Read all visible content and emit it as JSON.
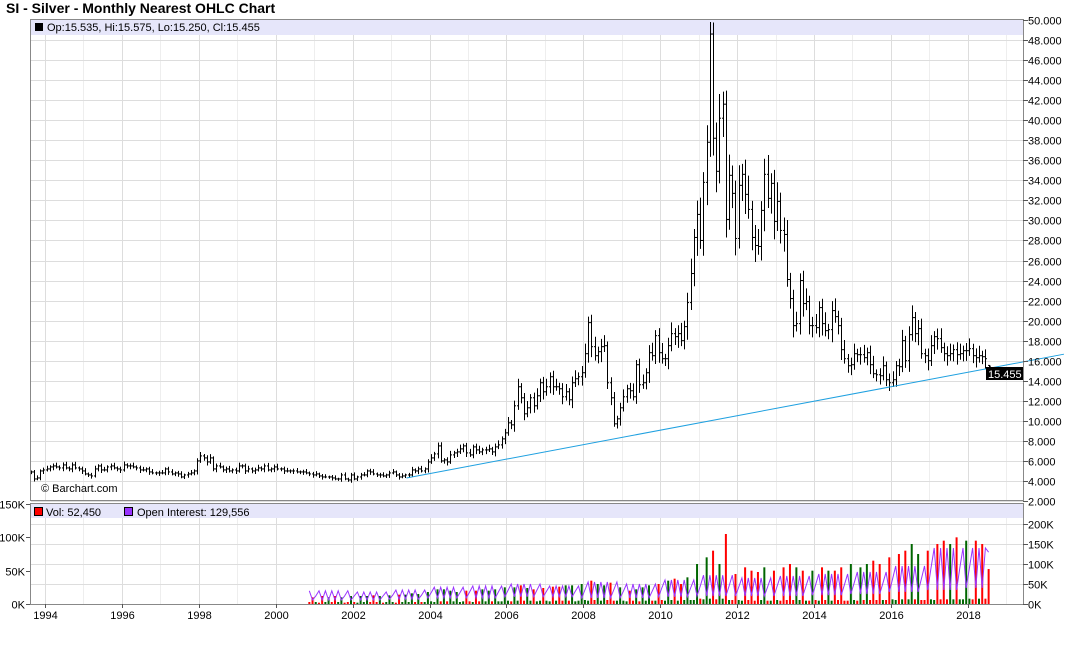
{
  "title": "SI - Silver - Monthly Nearest OHLC Chart",
  "watermark": "© Barchart.com",
  "price_legend": "Op:15.535, Hi:15.575, Lo:15.250, Cl:15.455",
  "last_price_tag": "15.455",
  "volume_legend": {
    "vol": "Vol: 52,450",
    "oi": "Open Interest: 129,556"
  },
  "colors": {
    "bar": "#000000",
    "trendline": "#1ea0e0",
    "vol_up": "#006600",
    "vol_down": "#ff0000",
    "oi": "#9933ff",
    "legend_bg": "#e6e6fa"
  },
  "chart_data": [
    {
      "type": "ohlc",
      "title": "SI - Silver - Monthly Nearest OHLC Chart",
      "start_month": "1993-08",
      "ylim": [
        2,
        50
      ],
      "yticks": [
        "2.000",
        "4.000",
        "6.000",
        "8.000",
        "10.000",
        "12.000",
        "14.000",
        "16.000",
        "18.000",
        "20.000",
        "22.000",
        "24.000",
        "26.000",
        "28.000",
        "30.000",
        "32.000",
        "34.000",
        "36.000",
        "38.000",
        "40.000",
        "42.000",
        "44.000",
        "46.000",
        "48.000",
        "50.000"
      ],
      "xticks": [
        "1994",
        "1996",
        "1998",
        "2000",
        "2002",
        "2004",
        "2006",
        "2008",
        "2010",
        "2012",
        "2014",
        "2016",
        "2018"
      ],
      "monthly_close": [
        4.9,
        4.2,
        4.3,
        5.0,
        5.1,
        5.2,
        5.4,
        5.5,
        5.4,
        5.3,
        5.6,
        5.3,
        5.2,
        5.6,
        5.3,
        5.2,
        5.0,
        4.7,
        4.6,
        4.5,
        5.2,
        5.5,
        5.1,
        5.1,
        5.4,
        5.5,
        5.3,
        5.2,
        5.1,
        5.6,
        5.5,
        5.5,
        5.4,
        5.3,
        5.1,
        5.1,
        5.2,
        4.9,
        4.8,
        4.8,
        4.8,
        4.8,
        5.2,
        4.9,
        4.7,
        4.8,
        4.7,
        4.4,
        4.6,
        4.7,
        4.8,
        5.0,
        6.0,
        6.5,
        6.3,
        5.9,
        6.3,
        5.2,
        5.5,
        5.4,
        5.1,
        5.2,
        5.0,
        5.1,
        5.0,
        5.5,
        5.5,
        5.0,
        5.2,
        5.0,
        5.1,
        5.3,
        5.2,
        5.5,
        5.1,
        5.2,
        5.4,
        5.2,
        5.2,
        5.0,
        5.0,
        5.0,
        5.0,
        4.9,
        4.9,
        4.9,
        4.8,
        4.7,
        4.6,
        4.7,
        4.5,
        4.4,
        4.4,
        4.4,
        4.3,
        4.2,
        4.2,
        4.6,
        4.2,
        4.1,
        4.6,
        4.2,
        4.4,
        4.6,
        4.6,
        5.0,
        4.9,
        4.7,
        4.6,
        4.6,
        4.5,
        4.6,
        4.8,
        4.9,
        4.6,
        4.4,
        4.5,
        4.6,
        4.6,
        5.1,
        5.0,
        5.2,
        5.0,
        5.2,
        5.9,
        6.3,
        6.7,
        7.5,
        6.0,
        6.1,
        5.9,
        6.6,
        6.8,
        6.9,
        7.2,
        7.5,
        6.8,
        6.6,
        7.4,
        7.1,
        6.9,
        7.1,
        7.1,
        7.2,
        6.9,
        7.4,
        7.6,
        8.2,
        8.8,
        9.8,
        9.6,
        11.5,
        13.4,
        12.3,
        10.7,
        11.3,
        12.3,
        11.5,
        12.5,
        13.8,
        12.9,
        13.4,
        14.4,
        13.4,
        13.4,
        13.2,
        12.4,
        12.9,
        12.1,
        13.8,
        14.2,
        14.4,
        14.8,
        16.7,
        19.8,
        17.4,
        16.5,
        16.9,
        17.4,
        17.5,
        13.8,
        12.3,
        9.7,
        10.2,
        11.3,
        12.4,
        13.2,
        13.0,
        12.4,
        15.6,
        13.6,
        13.8,
        14.8,
        16.8,
        16.5,
        18.5,
        16.8,
        16.2,
        16.2,
        17.5,
        18.7,
        18.4,
        18.7,
        18.0,
        19.4,
        21.8,
        24.7,
        28.3,
        30.6,
        28.0,
        33.8,
        37.8,
        48.6,
        38.2,
        34.9,
        40.2,
        41.6,
        30.1,
        34.5,
        32.7,
        28.2,
        33.5,
        34.6,
        32.6,
        31.1,
        28.3,
        27.5,
        27.4,
        31.0,
        34.6,
        32.2,
        33.7,
        29.9,
        31.9,
        29.0,
        28.6,
        24.1,
        22.2,
        19.5,
        19.7,
        24.0,
        21.7,
        21.9,
        19.5,
        19.5,
        19.3,
        21.3,
        19.7,
        19.0,
        19.1,
        21.0,
        20.4,
        19.5,
        17.1,
        16.2,
        15.5,
        15.6,
        16.7,
        16.6,
        16.6,
        16.3,
        16.8,
        15.6,
        14.7,
        14.6,
        14.5,
        15.5,
        14.1,
        13.8,
        14.1,
        15.5,
        15.4,
        18.0,
        16.0,
        18.6,
        20.3,
        18.7,
        19.2,
        16.7,
        16.5,
        16.0,
        17.5,
        18.4,
        18.2,
        17.3,
        16.7,
        16.5,
        16.7,
        17.1,
        16.6,
        16.7,
        17.0,
        17.0,
        17.2,
        16.5,
        16.3,
        16.5,
        16.4,
        16.2,
        15.455
      ],
      "last_bar": {
        "open": 15.535,
        "high": 15.575,
        "low": 15.25,
        "close": 15.455
      },
      "max_high": 49.8,
      "trendline": {
        "from": [
          2003.4,
          4.3
        ],
        "to": [
          2020.5,
          16.65
        ]
      }
    },
    {
      "type": "bar+line",
      "start_month": "2000-11",
      "volume_ylim_k": [
        0,
        150
      ],
      "volume_ticks": [
        "0K",
        "50K",
        "100K",
        "150K"
      ],
      "oi_ylim_k": [
        0,
        200
      ],
      "oi_ticks": [
        "0K",
        "50K",
        "100K",
        "150K",
        "200K"
      ],
      "volume_k": [
        3,
        10,
        3,
        2,
        12,
        3,
        10,
        3,
        12,
        3,
        10,
        2,
        3,
        12,
        3,
        2,
        12,
        3,
        12,
        3,
        13,
        3,
        12,
        2,
        3,
        13,
        3,
        2,
        14,
        3,
        14,
        3,
        16,
        3,
        15,
        3,
        3,
        18,
        4,
        3,
        22,
        4,
        22,
        4,
        20,
        4,
        18,
        3,
        4,
        20,
        4,
        3,
        20,
        4,
        22,
        4,
        20,
        4,
        22,
        4,
        4,
        25,
        5,
        4,
        25,
        5,
        28,
        5,
        24,
        5,
        22,
        4,
        5,
        24,
        5,
        4,
        26,
        5,
        26,
        5,
        28,
        5,
        28,
        4,
        5,
        30,
        6,
        5,
        35,
        6,
        30,
        5,
        28,
        6,
        32,
        5,
        5,
        25,
        5,
        4,
        20,
        5,
        22,
        4,
        25,
        5,
        28,
        5,
        5,
        30,
        6,
        5,
        35,
        6,
        38,
        5,
        30,
        6,
        40,
        6,
        6,
        60,
        8,
        7,
        70,
        8,
        80,
        7,
        60,
        8,
        105,
        6,
        6,
        45,
        6,
        5,
        55,
        6,
        50,
        5,
        48,
        6,
        55,
        5,
        5,
        50,
        6,
        5,
        55,
        6,
        60,
        6,
        55,
        6,
        50,
        5,
        5,
        50,
        6,
        5,
        55,
        6,
        50,
        5,
        50,
        6,
        55,
        5,
        5,
        60,
        6,
        5,
        55,
        6,
        60,
        6,
        65,
        6,
        60,
        6,
        6,
        70,
        7,
        6,
        75,
        7,
        80,
        7,
        90,
        7,
        75,
        6,
        6,
        80,
        7,
        6,
        90,
        7,
        95,
        7,
        90,
        7,
        100,
        7,
        7,
        95,
        8,
        7,
        95,
        8,
        90,
        8,
        52.45
      ],
      "open_interest_k": [
        33,
        10,
        20,
        33,
        10,
        33,
        10,
        33,
        10,
        33,
        10,
        20,
        33,
        10,
        20,
        30,
        10,
        30,
        10,
        30,
        10,
        30,
        10,
        20,
        30,
        12,
        22,
        35,
        12,
        35,
        12,
        35,
        12,
        35,
        12,
        22,
        35,
        15,
        28,
        42,
        15,
        42,
        15,
        42,
        15,
        42,
        15,
        28,
        42,
        15,
        30,
        45,
        15,
        45,
        15,
        45,
        15,
        45,
        15,
        30,
        45,
        18,
        34,
        50,
        18,
        50,
        18,
        50,
        18,
        50,
        18,
        34,
        50,
        18,
        32,
        45,
        18,
        45,
        18,
        45,
        18,
        45,
        18,
        32,
        45,
        15,
        35,
        55,
        15,
        55,
        15,
        55,
        15,
        55,
        15,
        35,
        55,
        15,
        32,
        50,
        15,
        50,
        15,
        50,
        15,
        50,
        15,
        32,
        50,
        18,
        40,
        60,
        18,
        60,
        18,
        60,
        18,
        60,
        18,
        40,
        60,
        20,
        45,
        72,
        20,
        72,
        20,
        72,
        20,
        72,
        20,
        45,
        72,
        20,
        42,
        65,
        20,
        65,
        20,
        65,
        20,
        65,
        20,
        42,
        65,
        20,
        45,
        70,
        20,
        70,
        20,
        70,
        20,
        70,
        20,
        45,
        70,
        22,
        48,
        75,
        22,
        75,
        22,
        75,
        22,
        75,
        22,
        48,
        75,
        25,
        52,
        80,
        25,
        80,
        25,
        80,
        25,
        80,
        25,
        52,
        80,
        30,
        62,
        95,
        30,
        95,
        30,
        95,
        30,
        95,
        30,
        62,
        95,
        35,
        90,
        140,
        35,
        140,
        35,
        140,
        35,
        140,
        35,
        90,
        140,
        40,
        90,
        140,
        40,
        140,
        40,
        140,
        129.556
      ]
    }
  ]
}
